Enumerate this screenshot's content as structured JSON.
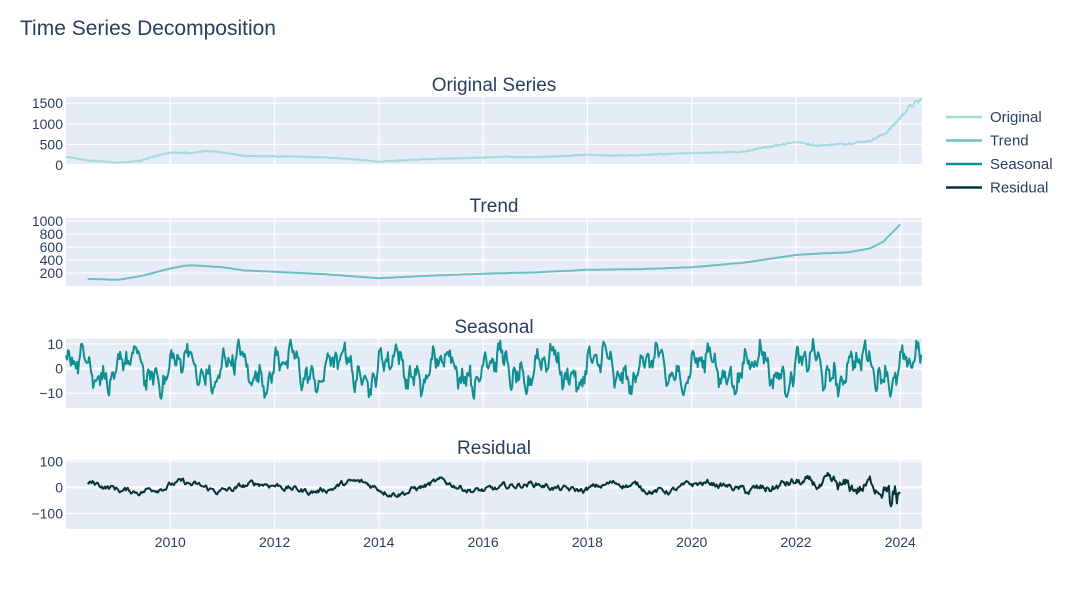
{
  "chart_data": {
    "type": "line",
    "title": "Time Series Decomposition",
    "legend": {
      "placement": "right",
      "entries": [
        "Original",
        "Trend",
        "Seasonal",
        "Residual"
      ]
    },
    "grid": true,
    "x_axis": {
      "type": "date",
      "range": [
        "2008-01-01",
        "2024-06-15"
      ],
      "ticks": [
        "2010",
        "2012",
        "2014",
        "2016",
        "2018",
        "2020",
        "2022",
        "2024"
      ]
    },
    "colors": {
      "Original": "#a3dbd9",
      "Trend": "#6cc1c0",
      "Seasonal": "#0f8f91",
      "Residual": "#063534",
      "plot_bg": "#e5ecf6",
      "grid": "#ffffff",
      "text": "#2a3f5f"
    },
    "panels": [
      {
        "name": "Original",
        "title": "Original Series",
        "ylim": [
          0,
          1650
        ],
        "yticks": [
          0,
          500,
          1000,
          1500
        ],
        "ytick_labels": [
          "0",
          "500",
          "1000",
          "1500"
        ],
        "knots": [
          [
            "2008-01",
            200
          ],
          [
            "2008-06",
            110
          ],
          [
            "2009-01",
            60
          ],
          [
            "2009-06",
            100
          ],
          [
            "2009-09",
            200
          ],
          [
            "2010-01",
            300
          ],
          [
            "2010-06",
            290
          ],
          [
            "2010-09",
            340
          ],
          [
            "2011-01",
            310
          ],
          [
            "2011-06",
            220
          ],
          [
            "2012-01",
            210
          ],
          [
            "2012-06",
            200
          ],
          [
            "2013-01",
            180
          ],
          [
            "2013-06",
            150
          ],
          [
            "2014-01",
            80
          ],
          [
            "2014-06",
            110
          ],
          [
            "2015-01",
            150
          ],
          [
            "2015-06",
            160
          ],
          [
            "2016-01",
            180
          ],
          [
            "2016-06",
            200
          ],
          [
            "2017-01",
            190
          ],
          [
            "2017-06",
            210
          ],
          [
            "2018-01",
            250
          ],
          [
            "2018-06",
            230
          ],
          [
            "2019-01",
            240
          ],
          [
            "2019-06",
            260
          ],
          [
            "2020-01",
            290
          ],
          [
            "2020-06",
            300
          ],
          [
            "2021-01",
            320
          ],
          [
            "2021-06",
            430
          ],
          [
            "2022-01",
            560
          ],
          [
            "2022-06",
            470
          ],
          [
            "2023-01",
            520
          ],
          [
            "2023-06",
            580
          ],
          [
            "2023-10",
            800
          ],
          [
            "2024-01",
            1150
          ],
          [
            "2024-03",
            1400
          ],
          [
            "2024-06",
            1600
          ]
        ]
      },
      {
        "name": "Trend",
        "title": "Trend",
        "ylim": [
          0,
          1050
        ],
        "yticks": [
          200,
          400,
          600,
          800,
          1000
        ],
        "ytick_labels": [
          "200",
          "400",
          "600",
          "800",
          "1000"
        ],
        "knots": [
          [
            "2008-06",
            110
          ],
          [
            "2009-01",
            95
          ],
          [
            "2009-06",
            150
          ],
          [
            "2010-01",
            270
          ],
          [
            "2010-04",
            310
          ],
          [
            "2010-06",
            320
          ],
          [
            "2011-01",
            290
          ],
          [
            "2011-06",
            240
          ],
          [
            "2012-01",
            220
          ],
          [
            "2013-01",
            180
          ],
          [
            "2014-01",
            120
          ],
          [
            "2015-01",
            160
          ],
          [
            "2016-01",
            190
          ],
          [
            "2017-01",
            210
          ],
          [
            "2018-01",
            250
          ],
          [
            "2019-01",
            260
          ],
          [
            "2020-01",
            290
          ],
          [
            "2021-01",
            360
          ],
          [
            "2022-01",
            480
          ],
          [
            "2022-06",
            500
          ],
          [
            "2023-01",
            520
          ],
          [
            "2023-06",
            580
          ],
          [
            "2023-09",
            680
          ],
          [
            "2024-01",
            950
          ]
        ]
      },
      {
        "name": "Seasonal",
        "title": "Seasonal",
        "ylim": [
          -16,
          12
        ],
        "yticks": [
          -10,
          0,
          10
        ],
        "ytick_labels": [
          "−10",
          "0",
          "10"
        ],
        "period_years": 1,
        "amplitude": 10
      },
      {
        "name": "Residual",
        "title": "Residual",
        "ylim": [
          -160,
          105
        ],
        "yticks": [
          -100,
          0,
          100
        ],
        "ytick_labels": [
          "−100",
          "0",
          "100"
        ],
        "range": [
          "2008-06",
          "2024-01"
        ]
      }
    ]
  }
}
